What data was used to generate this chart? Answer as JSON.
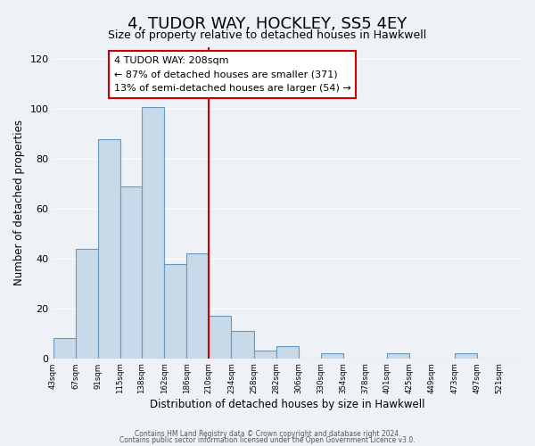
{
  "title": "4, TUDOR WAY, HOCKLEY, SS5 4EY",
  "subtitle": "Size of property relative to detached houses in Hawkwell",
  "xlabel": "Distribution of detached houses by size in Hawkwell",
  "ylabel": "Number of detached properties",
  "bar_color": "#c8d9ea",
  "bar_edge_color": "#6699bb",
  "bin_labels": [
    "43sqm",
    "67sqm",
    "91sqm",
    "115sqm",
    "138sqm",
    "162sqm",
    "186sqm",
    "210sqm",
    "234sqm",
    "258sqm",
    "282sqm",
    "306sqm",
    "330sqm",
    "354sqm",
    "378sqm",
    "401sqm",
    "425sqm",
    "449sqm",
    "473sqm",
    "497sqm",
    "521sqm"
  ],
  "bin_edges": [
    43,
    67,
    91,
    115,
    138,
    162,
    186,
    210,
    234,
    258,
    282,
    306,
    330,
    354,
    378,
    401,
    425,
    449,
    473,
    497,
    521,
    545
  ],
  "bar_heights": [
    8,
    44,
    88,
    69,
    101,
    38,
    42,
    17,
    11,
    3,
    5,
    0,
    2,
    0,
    0,
    2,
    0,
    0,
    2,
    0,
    0
  ],
  "vline_x": 210,
  "vline_color": "#cc0000",
  "ylim": [
    0,
    125
  ],
  "yticks": [
    0,
    20,
    40,
    60,
    80,
    100,
    120
  ],
  "annotation_title": "4 TUDOR WAY: 208sqm",
  "annotation_line1": "← 87% of detached houses are smaller (371)",
  "annotation_line2": "13% of semi-detached houses are larger (54) →",
  "footer1": "Contains HM Land Registry data © Crown copyright and database right 2024.",
  "footer2": "Contains public sector information licensed under the Open Government Licence v3.0.",
  "background_color": "#eef2f7",
  "plot_background": "#eef2f7",
  "grid_color": "#ffffff"
}
